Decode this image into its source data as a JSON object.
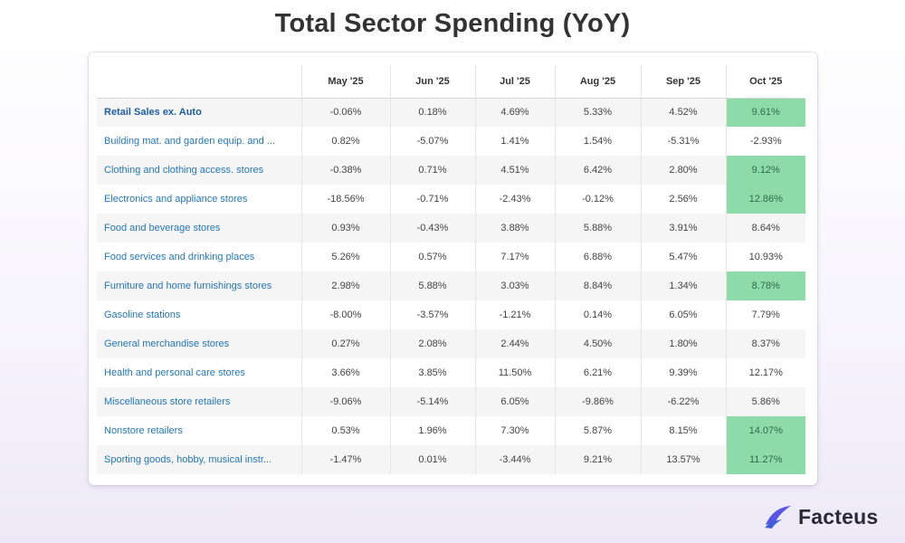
{
  "chart_data": {
    "type": "table",
    "title": "Total Sector Spending (YoY)",
    "columns": [
      "May '25",
      "Jun '25",
      "Jul '25",
      "Aug '25",
      "Sep '25",
      "Oct '25"
    ],
    "rows": [
      {
        "label": "Retail Sales ex. Auto",
        "bold": true,
        "values": [
          "-0.06%",
          "0.18%",
          "4.69%",
          "5.33%",
          "4.52%",
          "9.61%"
        ],
        "highlight": [
          5
        ]
      },
      {
        "label": "Building mat. and garden equip. and ...",
        "bold": false,
        "values": [
          "0.82%",
          "-5.07%",
          "1.41%",
          "1.54%",
          "-5.31%",
          "-2.93%"
        ],
        "highlight": []
      },
      {
        "label": "Clothing and clothing access. stores",
        "bold": false,
        "values": [
          "-0.38%",
          "0.71%",
          "4.51%",
          "6.42%",
          "2.80%",
          "9.12%"
        ],
        "highlight": [
          5
        ]
      },
      {
        "label": "Electronics and appliance stores",
        "bold": false,
        "values": [
          "-18.56%",
          "-0.71%",
          "-2.43%",
          "-0.12%",
          "2.56%",
          "12.86%"
        ],
        "highlight": [
          5
        ]
      },
      {
        "label": "Food and beverage stores",
        "bold": false,
        "values": [
          "0.93%",
          "-0.43%",
          "3.88%",
          "5.88%",
          "3.91%",
          "8.64%"
        ],
        "highlight": []
      },
      {
        "label": "Food services and drinking places",
        "bold": false,
        "values": [
          "5.26%",
          "0.57%",
          "7.17%",
          "6.88%",
          "5.47%",
          "10.93%"
        ],
        "highlight": []
      },
      {
        "label": "Furniture and home furnishings stores",
        "bold": false,
        "values": [
          "2.98%",
          "5.88%",
          "3.03%",
          "8.84%",
          "1.34%",
          "8.78%"
        ],
        "highlight": [
          5
        ]
      },
      {
        "label": "Gasoline stations",
        "bold": false,
        "values": [
          "-8.00%",
          "-3.57%",
          "-1.21%",
          "0.14%",
          "6.05%",
          "7.79%"
        ],
        "highlight": []
      },
      {
        "label": "General merchandise stores",
        "bold": false,
        "values": [
          "0.27%",
          "2.08%",
          "2.44%",
          "4.50%",
          "1.80%",
          "8.37%"
        ],
        "highlight": []
      },
      {
        "label": "Health and personal care stores",
        "bold": false,
        "values": [
          "3.66%",
          "3.85%",
          "11.50%",
          "6.21%",
          "9.39%",
          "12.17%"
        ],
        "highlight": []
      },
      {
        "label": "Miscellaneous store retailers",
        "bold": false,
        "values": [
          "-9.06%",
          "-5.14%",
          "6.05%",
          "-9.86%",
          "-6.22%",
          "5.86%"
        ],
        "highlight": []
      },
      {
        "label": "Nonstore retailers",
        "bold": false,
        "values": [
          "0.53%",
          "1.96%",
          "7.30%",
          "5.87%",
          "8.15%",
          "14.07%"
        ],
        "highlight": [
          5
        ]
      },
      {
        "label": "Sporting goods, hobby, musical instr...",
        "bold": false,
        "values": [
          "-1.47%",
          "0.01%",
          "-3.44%",
          "9.21%",
          "13.57%",
          "11.27%"
        ],
        "highlight": [
          5
        ]
      }
    ]
  },
  "colors": {
    "highlight": "#8ddba9",
    "row_label": "#2477b3",
    "alt_row": "#f5f5f5"
  },
  "brand": {
    "name": "Facteus",
    "logo_icon": "facteus-logo-icon"
  }
}
